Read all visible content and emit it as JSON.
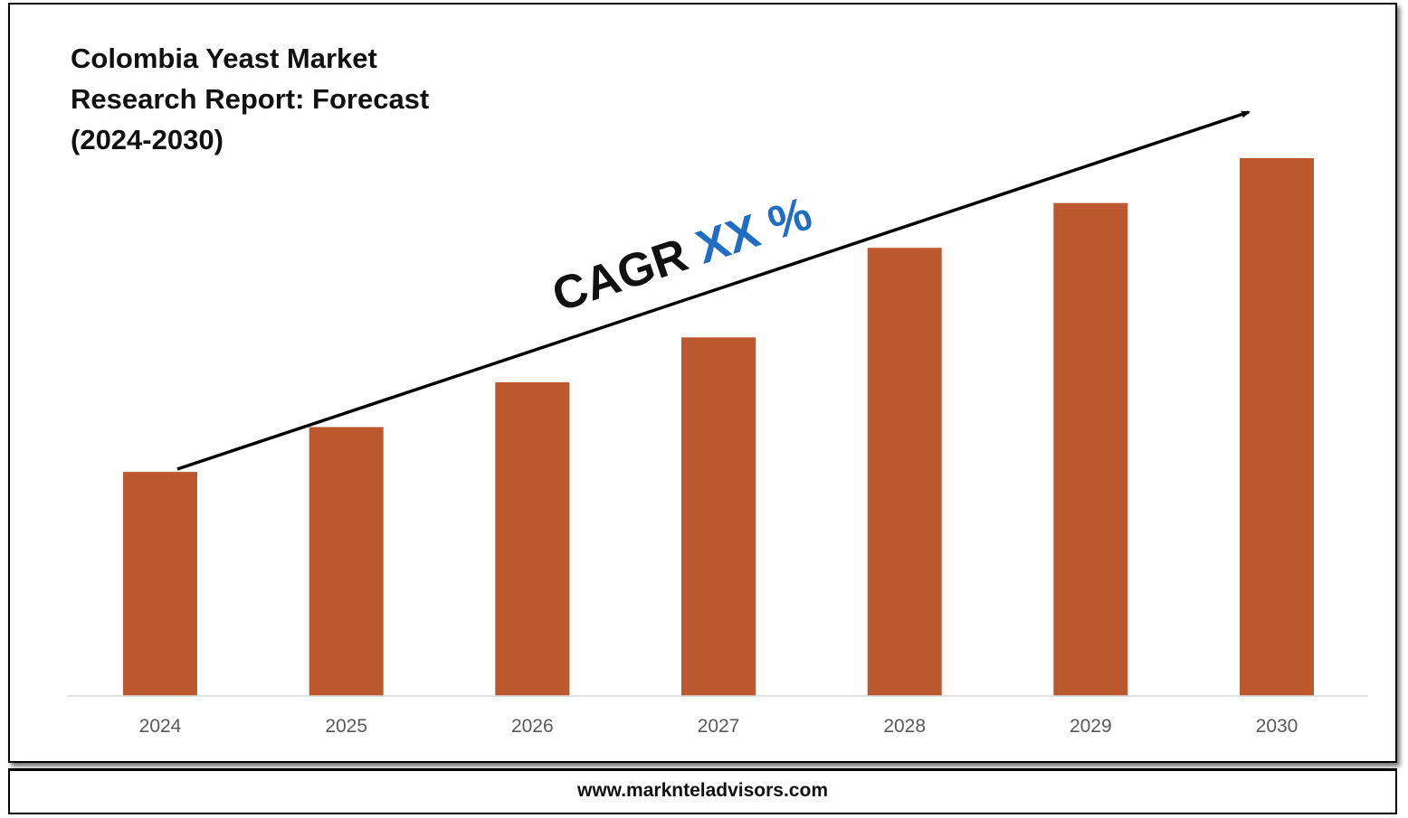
{
  "title": "Colombia Yeast Market Research Report: Forecast (2024-2030)",
  "annotation": {
    "cagr_label": "CAGR",
    "cagr_value": "XX %",
    "cagr_label_color": "#111111",
    "cagr_value_color": "#1F6EC3"
  },
  "footer": {
    "url": "www.marknteladvisors.com"
  },
  "chart_data": {
    "type": "bar",
    "title": "Colombia Yeast Market Research Report: Forecast (2024-2030)",
    "xlabel": "",
    "ylabel": "",
    "categories": [
      "2024",
      "2025",
      "2026",
      "2027",
      "2028",
      "2029",
      "2030"
    ],
    "values": [
      1.0,
      1.2,
      1.4,
      1.6,
      2.0,
      2.2,
      2.4
    ],
    "ylim": [
      0,
      2.4
    ],
    "y_axis_shown": false,
    "grid": false,
    "legend": "none",
    "bar_color": "#BC582D",
    "trend_arrow": true
  }
}
